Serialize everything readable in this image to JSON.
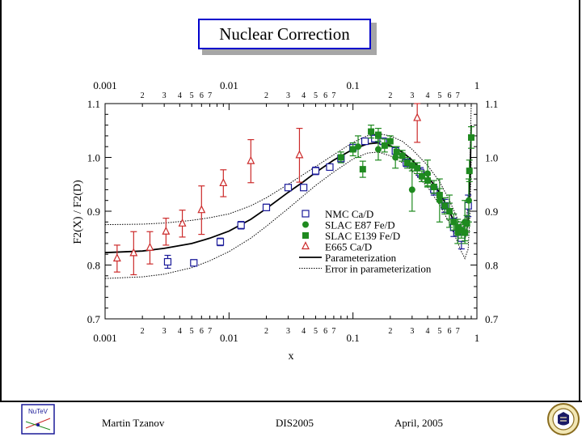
{
  "slide_title": "Nuclear Correction",
  "footer": {
    "author": "Martin Tzanov",
    "conference": "DIS2005",
    "date": "April, 2005"
  },
  "logos": {
    "left": "NuTeV",
    "right": "Pittsburgh"
  },
  "chart_data": {
    "type": "scatter",
    "xscale": "log",
    "xlim": [
      0.001,
      1
    ],
    "ylim": [
      0.7,
      1.1
    ],
    "xlabel": "x",
    "ylabel": "F2(X) / F2(D)",
    "decade_labels": [
      "0.001",
      "0.01",
      "0.1",
      "1"
    ],
    "minor_labels": [
      "2",
      "3",
      "4",
      "5",
      "6",
      "7"
    ],
    "y_ticks": [
      {
        "value": 0.7,
        "label": "0.7"
      },
      {
        "value": 0.8,
        "label": "0.8"
      },
      {
        "value": 0.9,
        "label": "0.9"
      },
      {
        "value": 1.0,
        "label": "1.0"
      },
      {
        "value": 1.1,
        "label": "1.1"
      }
    ],
    "series": [
      {
        "name": "NMC Ca/D",
        "marker": "open-square",
        "color": "#1a1a99",
        "points": [
          [
            0.0032,
            0.806,
            0.012
          ],
          [
            0.0052,
            0.804,
            0.006
          ],
          [
            0.0085,
            0.843,
            0.007
          ],
          [
            0.0125,
            0.874,
            0.007
          ],
          [
            0.02,
            0.907,
            0.006
          ],
          [
            0.03,
            0.944,
            0.005
          ],
          [
            0.04,
            0.944,
            0.005
          ],
          [
            0.05,
            0.975,
            0.007
          ],
          [
            0.065,
            0.982,
            0.005
          ],
          [
            0.08,
            0.998,
            0.006
          ],
          [
            0.1,
            1.018,
            0.006
          ],
          [
            0.125,
            1.03,
            0.005
          ],
          [
            0.15,
            1.035,
            0.006
          ],
          [
            0.175,
            1.03,
            0.006
          ],
          [
            0.22,
            1.012,
            0.006
          ],
          [
            0.27,
            0.99,
            0.007
          ],
          [
            0.35,
            0.972,
            0.009
          ],
          [
            0.45,
            0.94,
            0.01
          ],
          [
            0.55,
            0.91,
            0.012
          ],
          [
            0.65,
            0.87,
            0.017
          ],
          [
            0.75,
            0.85,
            0.02
          ],
          [
            0.85,
            0.91,
            0.02
          ]
        ]
      },
      {
        "name": "SLAC E87 Fe/D",
        "marker": "filled-circle",
        "color": "#1f8a1f",
        "points": [
          [
            0.11,
            1.02,
            0.02
          ],
          [
            0.16,
            1.015,
            0.02
          ],
          [
            0.22,
            1.0,
            0.02
          ],
          [
            0.3,
            0.94,
            0.04
          ],
          [
            0.4,
            0.97,
            0.025
          ],
          [
            0.5,
            0.92,
            0.04
          ],
          [
            0.6,
            0.9,
            0.03
          ],
          [
            0.7,
            0.86,
            0.02
          ],
          [
            0.8,
            0.88,
            0.04
          ],
          [
            0.86,
            0.92,
            0.04
          ]
        ]
      },
      {
        "name": "SLAC E139 Fe/D",
        "marker": "filled-square",
        "color": "#1f8a1f",
        "points": [
          [
            0.08,
            1.0,
            0.01
          ],
          [
            0.1,
            1.015,
            0.012
          ],
          [
            0.12,
            0.978,
            0.015
          ],
          [
            0.14,
            1.048,
            0.012
          ],
          [
            0.16,
            1.042,
            0.012
          ],
          [
            0.18,
            1.022,
            0.012
          ],
          [
            0.2,
            1.03,
            0.01
          ],
          [
            0.225,
            1.01,
            0.01
          ],
          [
            0.25,
            1.003,
            0.01
          ],
          [
            0.275,
            0.99,
            0.01
          ],
          [
            0.3,
            0.985,
            0.01
          ],
          [
            0.33,
            0.98,
            0.01
          ],
          [
            0.36,
            0.965,
            0.01
          ],
          [
            0.4,
            0.957,
            0.01
          ],
          [
            0.45,
            0.945,
            0.012
          ],
          [
            0.5,
            0.93,
            0.012
          ],
          [
            0.55,
            0.91,
            0.015
          ],
          [
            0.6,
            0.9,
            0.015
          ],
          [
            0.65,
            0.88,
            0.015
          ],
          [
            0.7,
            0.87,
            0.015
          ],
          [
            0.75,
            0.865,
            0.015
          ],
          [
            0.8,
            0.86,
            0.015
          ],
          [
            0.83,
            0.877,
            0.015
          ],
          [
            0.87,
            0.975,
            0.02
          ],
          [
            0.9,
            1.037,
            0.02
          ]
        ]
      },
      {
        "name": "E665 Ca/D",
        "marker": "open-triangle",
        "color": "#cc2a2a",
        "points": [
          [
            0.00125,
            0.812,
            0.025
          ],
          [
            0.0017,
            0.822,
            0.04
          ],
          [
            0.0023,
            0.832,
            0.03
          ],
          [
            0.0031,
            0.862,
            0.025
          ],
          [
            0.0042,
            0.877,
            0.025
          ],
          [
            0.006,
            0.902,
            0.045
          ],
          [
            0.009,
            0.952,
            0.025
          ],
          [
            0.015,
            0.993,
            0.04
          ],
          [
            0.037,
            1.004,
            0.05
          ],
          [
            0.33,
            1.073,
            0.045
          ]
        ]
      }
    ],
    "curves": [
      {
        "name": "Parameterization",
        "style": "solid",
        "points": [
          [
            0.001,
            0.823
          ],
          [
            0.002,
            0.826
          ],
          [
            0.003,
            0.831
          ],
          [
            0.005,
            0.84
          ],
          [
            0.007,
            0.85
          ],
          [
            0.01,
            0.863
          ],
          [
            0.015,
            0.885
          ],
          [
            0.02,
            0.905
          ],
          [
            0.03,
            0.935
          ],
          [
            0.04,
            0.955
          ],
          [
            0.05,
            0.972
          ],
          [
            0.07,
            0.995
          ],
          [
            0.1,
            1.015
          ],
          [
            0.13,
            1.025
          ],
          [
            0.16,
            1.027
          ],
          [
            0.2,
            1.022
          ],
          [
            0.25,
            1.01
          ],
          [
            0.3,
            0.995
          ],
          [
            0.4,
            0.965
          ],
          [
            0.5,
            0.935
          ],
          [
            0.6,
            0.9
          ],
          [
            0.7,
            0.865
          ],
          [
            0.75,
            0.852
          ],
          [
            0.8,
            0.85
          ],
          [
            0.85,
            0.88
          ],
          [
            0.88,
            0.96
          ],
          [
            0.9,
            1.06
          ]
        ]
      },
      {
        "name": "Error in parameterization",
        "style": "dotted",
        "points": [
          [
            0.001,
            0.875
          ],
          [
            0.002,
            0.876
          ],
          [
            0.003,
            0.878
          ],
          [
            0.005,
            0.883
          ],
          [
            0.007,
            0.888
          ],
          [
            0.01,
            0.895
          ],
          [
            0.015,
            0.91
          ],
          [
            0.02,
            0.925
          ],
          [
            0.03,
            0.95
          ],
          [
            0.05,
            0.983
          ],
          [
            0.07,
            1.005
          ],
          [
            0.1,
            1.028
          ],
          [
            0.13,
            1.04
          ],
          [
            0.16,
            1.044
          ],
          [
            0.2,
            1.04
          ],
          [
            0.25,
            1.03
          ],
          [
            0.3,
            1.015
          ],
          [
            0.4,
            0.985
          ],
          [
            0.5,
            0.955
          ],
          [
            0.6,
            0.92
          ],
          [
            0.7,
            0.885
          ],
          [
            0.75,
            0.872
          ],
          [
            0.8,
            0.873
          ],
          [
            0.85,
            0.91
          ],
          [
            0.88,
            1.0
          ],
          [
            0.9,
            1.1
          ]
        ]
      },
      {
        "name": "Error in parameterization (lower)",
        "style": "dotted",
        "points": [
          [
            0.001,
            0.775
          ],
          [
            0.002,
            0.778
          ],
          [
            0.003,
            0.783
          ],
          [
            0.005,
            0.795
          ],
          [
            0.007,
            0.808
          ],
          [
            0.01,
            0.825
          ],
          [
            0.015,
            0.85
          ],
          [
            0.02,
            0.872
          ],
          [
            0.03,
            0.905
          ],
          [
            0.05,
            0.948
          ],
          [
            0.07,
            0.973
          ],
          [
            0.1,
            0.997
          ],
          [
            0.13,
            1.008
          ],
          [
            0.16,
            1.01
          ],
          [
            0.2,
            1.003
          ],
          [
            0.25,
            0.99
          ],
          [
            0.3,
            0.975
          ],
          [
            0.4,
            0.945
          ],
          [
            0.5,
            0.912
          ],
          [
            0.6,
            0.878
          ],
          [
            0.7,
            0.842
          ],
          [
            0.75,
            0.825
          ],
          [
            0.8,
            0.812
          ],
          [
            0.85,
            0.83
          ],
          [
            0.88,
            0.9
          ],
          [
            0.9,
            1.0
          ]
        ]
      }
    ],
    "legend": [
      "NMC Ca/D",
      "SLAC E87 Fe/D",
      "SLAC E139 Fe/D",
      "E665  Ca/D",
      "Parameterization",
      "Error in parameterization"
    ],
    "legend_position": "lower-right"
  }
}
